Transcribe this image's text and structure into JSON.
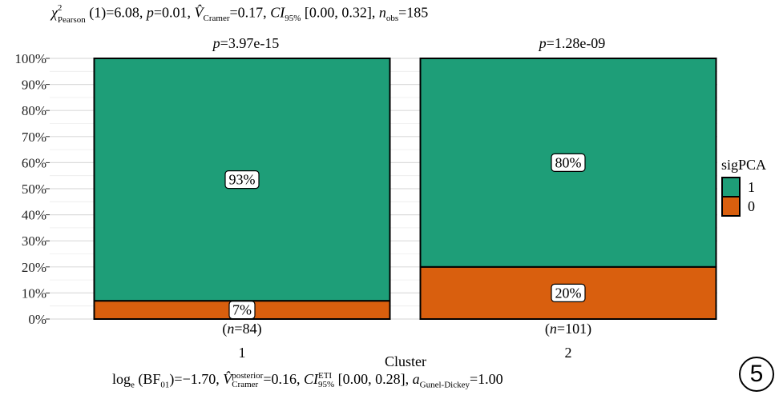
{
  "subtitle": {
    "chi": "χ",
    "chi_sup": "2",
    "chi_sub": "Pearson",
    "df": " (1)=6.08, ",
    "p_sym": "p",
    "p_val": "=0.01,  ",
    "v_sym": "V̂",
    "v_sub": "Cramer",
    "v_val": "=0.17, ",
    "ci_sym": "CI",
    "ci_sub": "95%",
    "ci_val": " [0.00, 0.32], ",
    "n_sym": "n",
    "n_sub": "obs",
    "n_val": "=185"
  },
  "caption": {
    "log": "log",
    "log_sub": "e",
    "bf": " (BF",
    "bf_sub": "01",
    "bf_val": ")=−1.70,  ",
    "v_sym": "V̂",
    "v_sup": "posterior",
    "v_sub": "Cramer",
    "v_val": "=0.16, ",
    "ci_sym": "CI",
    "ci_sup": "ETI",
    "ci_sub": "95%",
    "ci_val": " [0.00, 0.28], ",
    "a_sym": "a",
    "a_sub": "Gunel-Dickey",
    "a_val": "=1.00"
  },
  "chart_data": {
    "type": "bar",
    "stacked": true,
    "percent": true,
    "categories": [
      "1",
      "2"
    ],
    "xlabel": "Cluster",
    "ylabel": "",
    "ylim": [
      0,
      100
    ],
    "yticks": [
      "0%",
      "10%",
      "20%",
      "30%",
      "40%",
      "50%",
      "60%",
      "70%",
      "80%",
      "90%",
      "100%"
    ],
    "legend": {
      "title": "sigPCA",
      "position": "right"
    },
    "series": [
      {
        "name": "0",
        "color": "#D95F0E",
        "values": [
          7,
          20
        ],
        "labels": [
          "7%",
          "20%"
        ]
      },
      {
        "name": "1",
        "color": "#1E9E78",
        "values": [
          93,
          80
        ],
        "labels": [
          "93%",
          "80%"
        ]
      }
    ],
    "pvalues": [
      "p=3.97e-15",
      "p=1.28e-09"
    ],
    "counts": [
      "(n=84)",
      "(n=101)"
    ],
    "grid": true
  },
  "badge_number": "5"
}
